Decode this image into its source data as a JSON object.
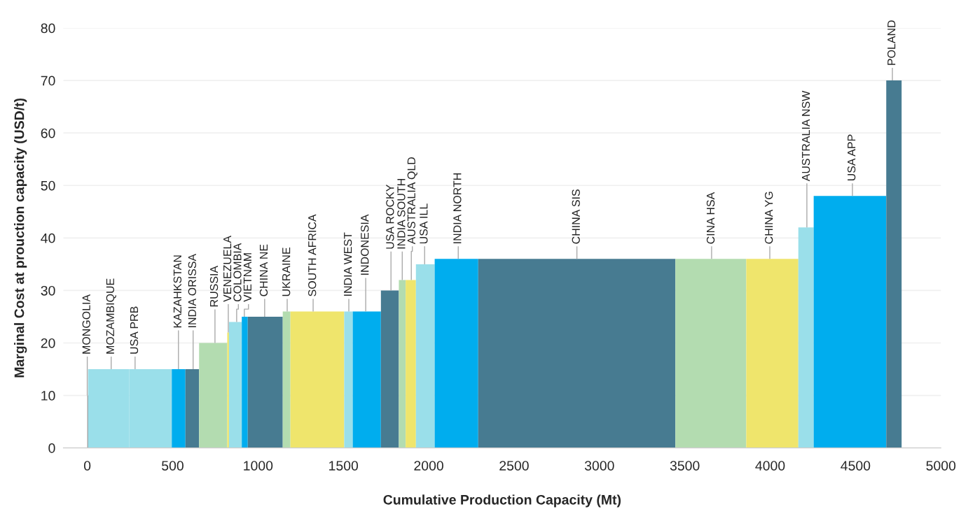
{
  "chart_data": {
    "type": "histogram",
    "xlabel": "Cumulative Production Capacity (Mt)",
    "ylabel": "Marginal Cost at prouction capacity (USD/t)",
    "bins": [
      0,
      5,
      245,
      495,
      575,
      655,
      820,
      830,
      905,
      940,
      1145,
      1190,
      1505,
      1555,
      1720,
      1825,
      1865,
      1925,
      2035,
      2290,
      3445,
      3860,
      4165,
      4255,
      4680,
      4770
    ],
    "values": [
      10,
      15,
      15,
      15,
      15,
      20,
      22,
      24,
      25,
      25,
      26,
      26,
      26,
      26,
      30,
      32,
      32,
      35,
      36,
      36,
      36,
      36,
      42,
      48,
      70
    ],
    "colors": [
      "#8c8c8c",
      "#9adfea",
      "#9adfea",
      "#00adee",
      "#477b91",
      "#b3dcb0",
      "#efe56c",
      "#9adfea",
      "#00adee",
      "#477b91",
      "#b3dcb0",
      "#efe56c",
      "#9adfea",
      "#00adee",
      "#477b91",
      "#b3dcb0",
      "#efe56c",
      "#9adfea",
      "#00adee",
      "#477b91",
      "#b3dcb0",
      "#efe56c",
      "#9adfea",
      "#00adee",
      "#477b91"
    ],
    "annotations": [
      {
        "text": "MONGOLIA",
        "x": 0,
        "y": 10
      },
      {
        "text": "MOZAMBIQUE",
        "x": 140,
        "y": 15
      },
      {
        "text": "USA PRB",
        "x": 280,
        "y": 15
      },
      {
        "text": "KAZAHKSTAN",
        "x": 534,
        "y": 15
      },
      {
        "text": "INDIA ORISSA",
        "x": 620,
        "y": 15
      },
      {
        "text": "RUSSIA",
        "x": 748,
        "y": 20
      },
      {
        "text": "VENEZUELA",
        "x": 826,
        "y": 22
      },
      {
        "text": "COLOMBIA",
        "x": 875,
        "y": 24
      },
      {
        "text": "VIETNAM",
        "x": 920,
        "y": 25
      },
      {
        "text": "CHINA NE",
        "x": 1039,
        "y": 25
      },
      {
        "text": "UKRAINE",
        "x": 1171,
        "y": 26
      },
      {
        "text": "SOUTH AFRICA",
        "x": 1323,
        "y": 26
      },
      {
        "text": "INDIA WEST",
        "x": 1532,
        "y": 26
      },
      {
        "text": "INDONESIA",
        "x": 1631,
        "y": 26
      },
      {
        "text": "USA ROCKY",
        "x": 1779,
        "y": 30
      },
      {
        "text": "INDIA SOUTH",
        "x": 1845,
        "y": 32
      },
      {
        "text": "AUSTRALIA QLD",
        "x": 1898,
        "y": 32
      },
      {
        "text": "USA ILL",
        "x": 1976,
        "y": 35
      },
      {
        "text": "INDIA NORTH",
        "x": 2173,
        "y": 36
      },
      {
        "text": "CHINA SIS",
        "x": 2868,
        "y": 36
      },
      {
        "text": "CINA HSA",
        "x": 3657,
        "y": 36
      },
      {
        "text": "CHINA YG",
        "x": 3998,
        "y": 36
      },
      {
        "text": "AUSTRALIA NSW",
        "x": 4215,
        "y": 42
      },
      {
        "text": "USA APP",
        "x": 4482,
        "y": 48
      },
      {
        "text": "POLAND",
        "x": 4716,
        "y": 70
      }
    ],
    "xlim": [
      -140,
      5000
    ],
    "ylim": [
      0,
      80
    ],
    "xticks": [
      0,
      500,
      1000,
      1500,
      2000,
      2500,
      3000,
      3500,
      4000,
      4500,
      5000
    ],
    "yticks": [
      0,
      10,
      20,
      30,
      40,
      50,
      60,
      70,
      80
    ],
    "grid": "y"
  }
}
